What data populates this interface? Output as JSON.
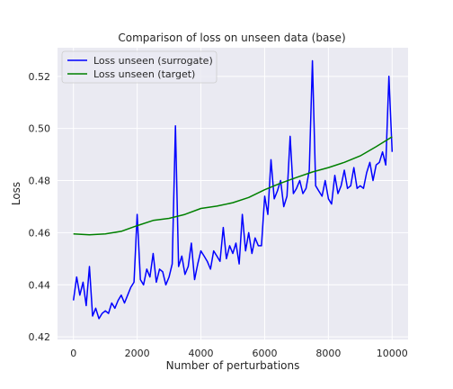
{
  "chart_data": {
    "type": "line",
    "title": "Comparison of loss on unseen data (base)",
    "xlabel": "Number of perturbations",
    "ylabel": "Loss",
    "xlim": [
      -500,
      10500
    ],
    "ylim": [
      0.419,
      0.531
    ],
    "x_ticks": [
      0,
      2000,
      4000,
      6000,
      8000,
      10000
    ],
    "y_ticks": [
      0.42,
      0.44,
      0.46,
      0.48,
      0.5,
      0.52
    ],
    "y_tick_labels": [
      "0.42",
      "0.44",
      "0.46",
      "0.48",
      "0.50",
      "0.52"
    ],
    "grid": true,
    "legend_position": "top-left",
    "series": [
      {
        "name": "Loss unseen (surrogate)",
        "color": "#0000ff",
        "x": [
          0,
          100,
          200,
          300,
          400,
          500,
          600,
          700,
          800,
          900,
          1000,
          1100,
          1200,
          1300,
          1400,
          1500,
          1600,
          1700,
          1800,
          1900,
          2000,
          2100,
          2200,
          2300,
          2400,
          2500,
          2600,
          2700,
          2800,
          2900,
          3000,
          3100,
          3200,
          3300,
          3400,
          3500,
          3600,
          3700,
          3800,
          3900,
          4000,
          4100,
          4200,
          4300,
          4400,
          4500,
          4600,
          4700,
          4800,
          4900,
          5000,
          5100,
          5200,
          5300,
          5400,
          5500,
          5600,
          5700,
          5800,
          5900,
          6000,
          6100,
          6200,
          6300,
          6400,
          6500,
          6600,
          6700,
          6800,
          6900,
          7000,
          7100,
          7200,
          7300,
          7400,
          7500,
          7600,
          7700,
          7800,
          7900,
          8000,
          8100,
          8200,
          8300,
          8400,
          8500,
          8600,
          8700,
          8800,
          8900,
          9000,
          9100,
          9200,
          9300,
          9400,
          9500,
          9600,
          9700,
          9800,
          9900,
          10000
        ],
        "y": [
          0.434,
          0.443,
          0.436,
          0.441,
          0.432,
          0.447,
          0.428,
          0.431,
          0.427,
          0.429,
          0.43,
          0.429,
          0.433,
          0.431,
          0.434,
          0.436,
          0.433,
          0.436,
          0.439,
          0.441,
          0.467,
          0.442,
          0.44,
          0.446,
          0.443,
          0.452,
          0.441,
          0.446,
          0.445,
          0.44,
          0.443,
          0.448,
          0.501,
          0.447,
          0.451,
          0.444,
          0.447,
          0.456,
          0.442,
          0.448,
          0.453,
          0.451,
          0.449,
          0.446,
          0.453,
          0.451,
          0.449,
          0.462,
          0.45,
          0.455,
          0.452,
          0.456,
          0.448,
          0.467,
          0.453,
          0.46,
          0.452,
          0.458,
          0.455,
          0.455,
          0.474,
          0.467,
          0.488,
          0.473,
          0.476,
          0.48,
          0.47,
          0.474,
          0.497,
          0.475,
          0.477,
          0.48,
          0.475,
          0.477,
          0.484,
          0.526,
          0.478,
          0.476,
          0.474,
          0.48,
          0.473,
          0.471,
          0.482,
          0.475,
          0.478,
          0.484,
          0.477,
          0.478,
          0.485,
          0.477,
          0.478,
          0.477,
          0.483,
          0.487,
          0.48,
          0.486,
          0.487,
          0.491,
          0.486,
          0.52,
          0.491
        ]
      },
      {
        "name": "Loss unseen (target)",
        "color": "#008000",
        "x": [
          0,
          500,
          1000,
          1500,
          2000,
          2500,
          3000,
          3500,
          4000,
          4500,
          5000,
          5500,
          6000,
          6500,
          7000,
          7500,
          8000,
          8500,
          9000,
          9500,
          10000
        ],
        "y": [
          0.4595,
          0.4592,
          0.4595,
          0.4605,
          0.4627,
          0.4647,
          0.4655,
          0.467,
          0.4693,
          0.4702,
          0.4715,
          0.4735,
          0.4765,
          0.479,
          0.4812,
          0.4833,
          0.485,
          0.487,
          0.4895,
          0.493,
          0.4968
        ]
      }
    ]
  }
}
